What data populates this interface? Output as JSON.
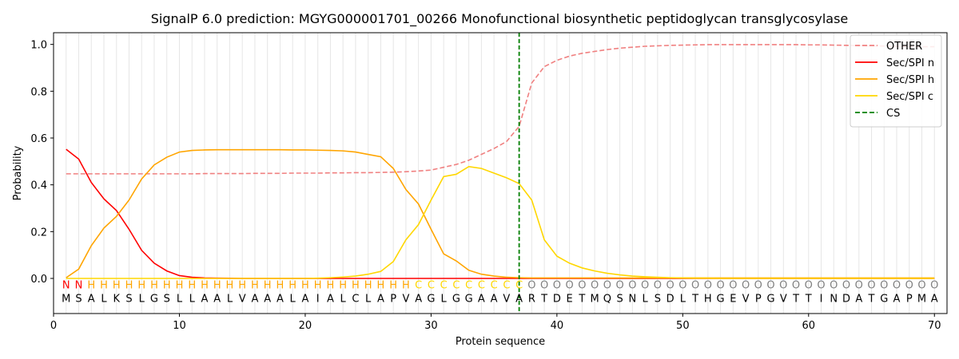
{
  "chart_data": {
    "type": "line",
    "title": "SignalP 6.0 prediction: MGYG000001701_00266 Monofunctional biosynthetic peptidoglycan transglycosylase",
    "xlabel": "Protein sequence",
    "ylabel": "Probability",
    "xlim": [
      0,
      71
    ],
    "ylim": [
      -0.15,
      1.05
    ],
    "x_ticks": [
      0,
      10,
      20,
      30,
      40,
      50,
      60,
      70
    ],
    "y_ticks": [
      0.0,
      0.2,
      0.4,
      0.6,
      0.8,
      1.0
    ],
    "x_tick_labels": [
      "0",
      "10",
      "20",
      "30",
      "40",
      "50",
      "60",
      "70"
    ],
    "y_tick_labels": [
      "0.0",
      "0.2",
      "0.4",
      "0.6",
      "0.8",
      "1.0"
    ],
    "grid": "vertical lines at each residue",
    "legend_position": "top-right",
    "sequence": [
      "M",
      "S",
      "A",
      "L",
      "K",
      "S",
      "L",
      "G",
      "S",
      "L",
      "L",
      "A",
      "A",
      "L",
      "V",
      "A",
      "A",
      "A",
      "L",
      "A",
      "I",
      "A",
      "L",
      "C",
      "L",
      "A",
      "P",
      "V",
      "A",
      "G",
      "L",
      "G",
      "G",
      "A",
      "A",
      "V",
      "A",
      "R",
      "T",
      "D",
      "E",
      "T",
      "M",
      "Q",
      "S",
      "N",
      "L",
      "S",
      "D",
      "L",
      "T",
      "H",
      "G",
      "E",
      "V",
      "P",
      "G",
      "V",
      "T",
      "T",
      "I",
      "N",
      "D",
      "A",
      "T",
      "G",
      "A",
      "P",
      "M",
      "A"
    ],
    "annotation": [
      "N",
      "N",
      "H",
      "H",
      "H",
      "H",
      "H",
      "H",
      "H",
      "H",
      "H",
      "H",
      "H",
      "H",
      "H",
      "H",
      "H",
      "H",
      "H",
      "H",
      "H",
      "H",
      "H",
      "H",
      "H",
      "H",
      "H",
      "H",
      "C",
      "C",
      "C",
      "C",
      "C",
      "C",
      "C",
      "C",
      "C",
      "O",
      "O",
      "O",
      "O",
      "O",
      "O",
      "O",
      "O",
      "O",
      "O",
      "O",
      "O",
      "O",
      "O",
      "O",
      "O",
      "O",
      "O",
      "O",
      "O",
      "O",
      "O",
      "O",
      "O",
      "O",
      "O",
      "O",
      "O",
      "O",
      "O",
      "O",
      "O",
      "O"
    ],
    "annotation_colors": {
      "N": "#ff0000",
      "H": "#ffa500",
      "C": "#ffd700",
      "O": "#808080"
    },
    "cleavage_site": 37,
    "series": [
      {
        "name": "OTHER",
        "color": "#f08080",
        "dash": true,
        "values": [
          0.447,
          0.447,
          0.447,
          0.447,
          0.447,
          0.447,
          0.447,
          0.447,
          0.447,
          0.447,
          0.447,
          0.448,
          0.448,
          0.448,
          0.448,
          0.449,
          0.449,
          0.449,
          0.45,
          0.45,
          0.45,
          0.451,
          0.451,
          0.452,
          0.452,
          0.453,
          0.454,
          0.456,
          0.459,
          0.463,
          0.475,
          0.487,
          0.505,
          0.53,
          0.555,
          0.585,
          0.65,
          0.835,
          0.905,
          0.932,
          0.95,
          0.962,
          0.97,
          0.978,
          0.984,
          0.988,
          0.992,
          0.994,
          0.996,
          0.997,
          0.998,
          0.999,
          0.999,
          0.999,
          0.999,
          0.999,
          0.999,
          0.999,
          0.999,
          0.998,
          0.998,
          0.997,
          0.996,
          0.995,
          0.994,
          0.993,
          0.992,
          0.991,
          0.99,
          0.99
        ]
      },
      {
        "name": "Sec/SPI n",
        "color": "#ff0000",
        "dash": false,
        "values": [
          0.552,
          0.51,
          0.41,
          0.34,
          0.29,
          0.21,
          0.12,
          0.065,
          0.032,
          0.012,
          0.005,
          0.002,
          0.001,
          0.0005,
          0,
          0,
          0,
          0,
          0,
          0,
          0,
          0,
          0,
          0,
          0,
          0,
          0,
          0,
          0,
          0,
          0,
          0,
          0,
          0,
          0,
          0,
          0,
          0,
          0,
          0,
          0,
          0,
          0,
          0,
          0,
          0,
          0,
          0,
          0,
          0,
          0,
          0,
          0,
          0,
          0,
          0,
          0,
          0,
          0,
          0,
          0,
          0,
          0,
          0,
          0,
          0,
          0,
          0,
          0,
          0
        ]
      },
      {
        "name": "Sec/SPI h",
        "color": "#ffa500",
        "dash": false,
        "values": [
          0.003,
          0.04,
          0.14,
          0.215,
          0.265,
          0.335,
          0.425,
          0.485,
          0.518,
          0.54,
          0.547,
          0.549,
          0.55,
          0.55,
          0.55,
          0.55,
          0.55,
          0.55,
          0.549,
          0.549,
          0.548,
          0.547,
          0.545,
          0.54,
          0.53,
          0.52,
          0.47,
          0.38,
          0.318,
          0.21,
          0.105,
          0.075,
          0.035,
          0.018,
          0.01,
          0.005,
          0.003,
          0.002,
          0.002,
          0.002,
          0.002,
          0.002,
          0.002,
          0.002,
          0.002,
          0.002,
          0.002,
          0.002,
          0.002,
          0.002,
          0.002,
          0.002,
          0.002,
          0.002,
          0.002,
          0.002,
          0.002,
          0.002,
          0.002,
          0.002,
          0.002,
          0.002,
          0.002,
          0.002,
          0.002,
          0.002,
          0.002,
          0.002,
          0.002,
          0.002
        ]
      },
      {
        "name": "Sec/SPI c",
        "color": "#ffd700",
        "dash": false,
        "values": [
          0,
          0,
          0,
          0,
          0,
          0,
          0,
          0,
          0,
          0,
          0,
          0,
          0,
          0,
          0,
          0,
          0,
          0,
          0,
          0,
          0.001,
          0.003,
          0.006,
          0.01,
          0.018,
          0.03,
          0.072,
          0.165,
          0.23,
          0.335,
          0.435,
          0.445,
          0.478,
          0.47,
          0.45,
          0.43,
          0.405,
          0.335,
          0.165,
          0.095,
          0.065,
          0.045,
          0.032,
          0.022,
          0.015,
          0.01,
          0.007,
          0.005,
          0.003,
          0.002,
          0.001,
          0.001,
          0,
          0,
          0,
          0,
          0,
          0,
          0,
          0,
          0,
          0,
          0,
          0,
          0,
          0,
          0,
          0,
          0,
          0
        ]
      }
    ],
    "cs_legend_label": "CS",
    "cs_color": "#008000"
  }
}
